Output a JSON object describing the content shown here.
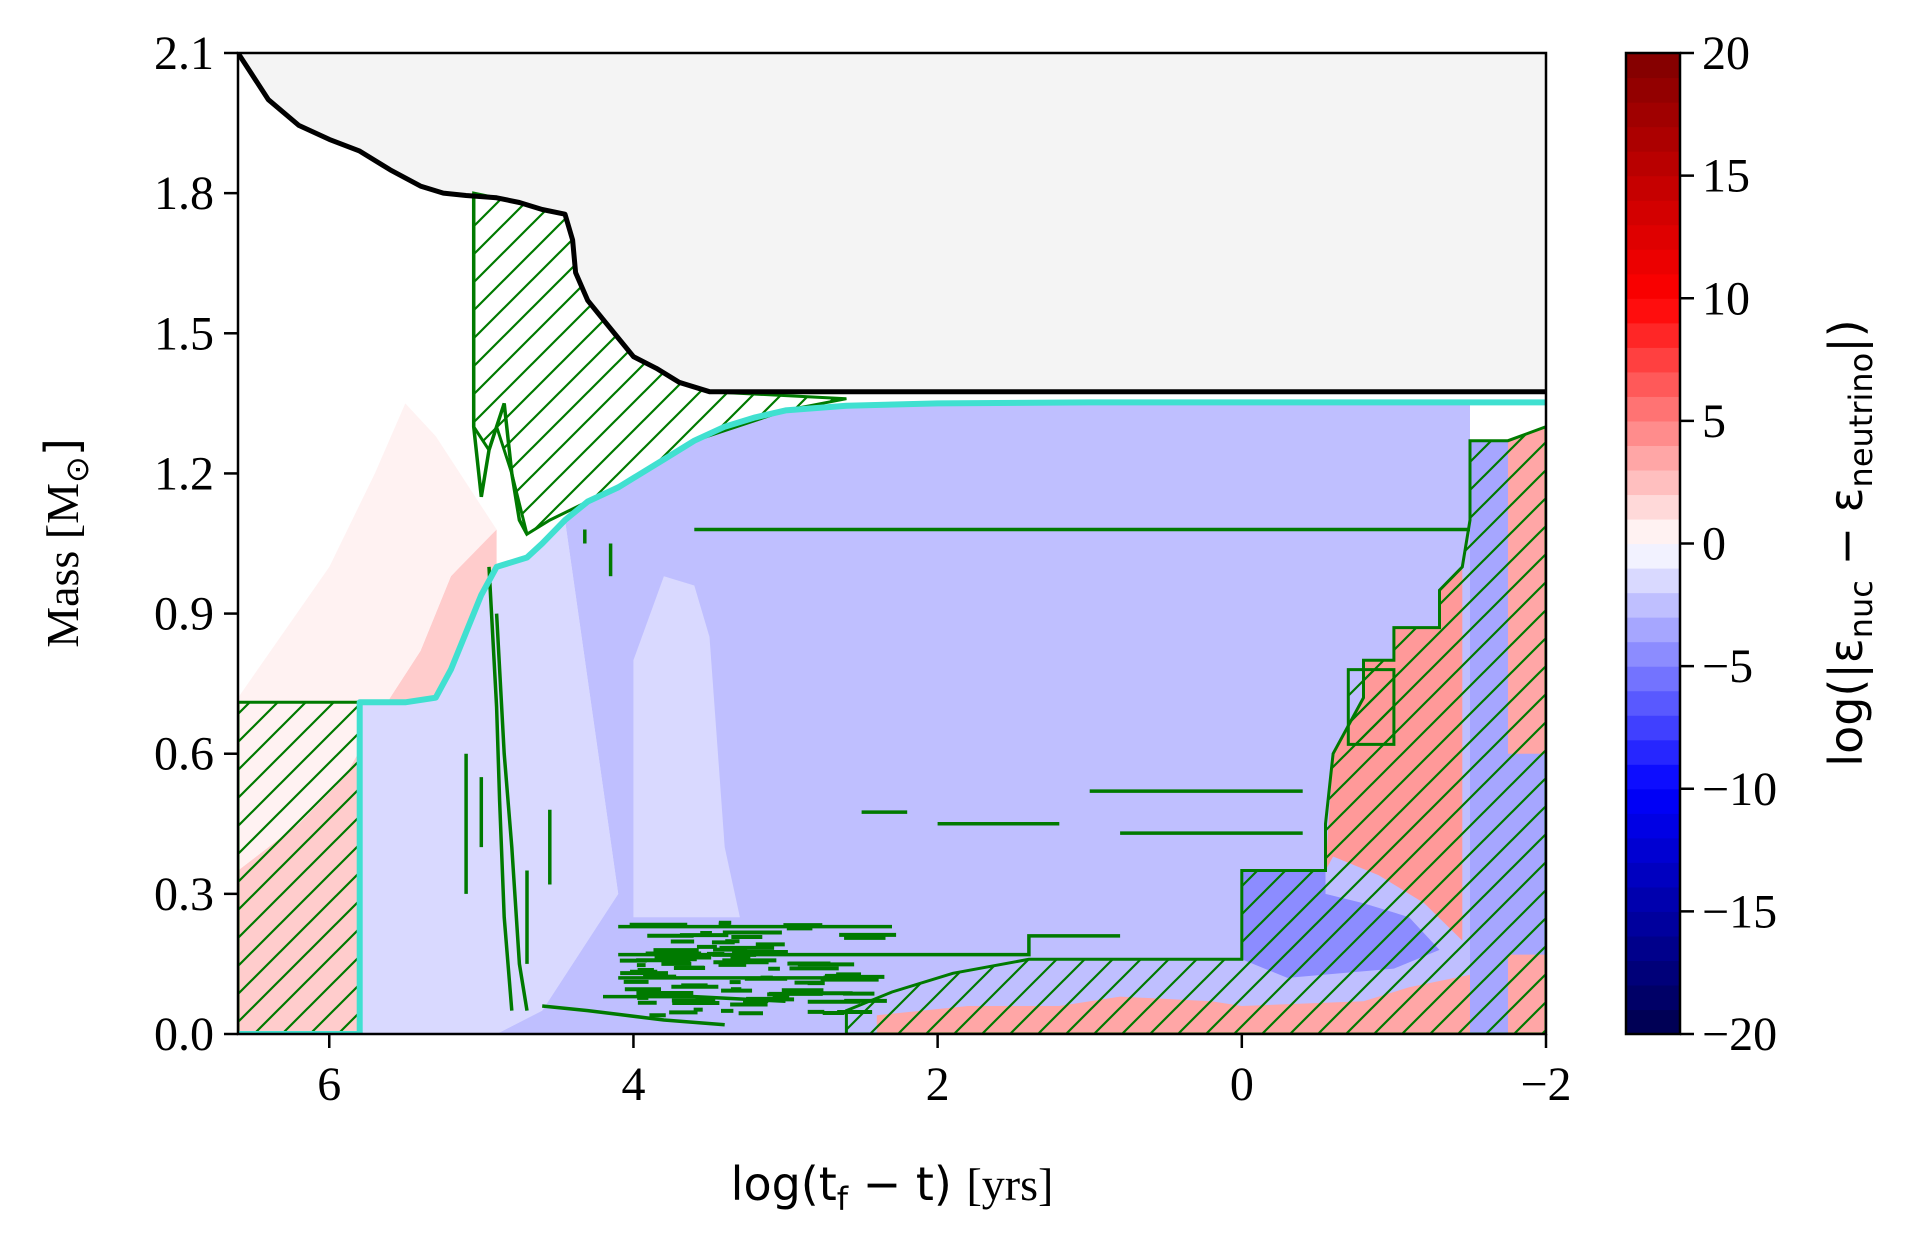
{
  "chart_data": {
    "type": "heatmap",
    "title": "",
    "xlabel": {
      "main": "log(t",
      "sub": "f",
      "rest": " − t) ",
      "unit": "[yrs]"
    },
    "ylabel": {
      "main": "Mass [M",
      "sub": "⊙",
      "rest": "]"
    },
    "colorbar_label": {
      "pre": "log(|ε",
      "sub1": "nuc",
      "mid": " − ε",
      "sub2": "neutrino",
      "post": "|)"
    },
    "xlim": [
      6.6,
      -2
    ],
    "ylim": [
      0,
      2.1
    ],
    "clim": [
      -20,
      20
    ],
    "colormap": "seismic",
    "xticks": [
      {
        "value": 6,
        "label": "6"
      },
      {
        "value": 4,
        "label": "4"
      },
      {
        "value": 2,
        "label": "2"
      },
      {
        "value": 0,
        "label": "0"
      },
      {
        "value": -2,
        "label": "−2"
      }
    ],
    "yticks": [
      {
        "value": 0.0,
        "label": "0.0"
      },
      {
        "value": 0.3,
        "label": "0.3"
      },
      {
        "value": 0.6,
        "label": "0.6"
      },
      {
        "value": 0.9,
        "label": "0.9"
      },
      {
        "value": 1.2,
        "label": "1.2"
      },
      {
        "value": 1.5,
        "label": "1.5"
      },
      {
        "value": 1.8,
        "label": "1.8"
      },
      {
        "value": 2.1,
        "label": "2.1"
      }
    ],
    "cticks": [
      {
        "value": 20,
        "label": "20"
      },
      {
        "value": 15,
        "label": "15"
      },
      {
        "value": 10,
        "label": "10"
      },
      {
        "value": 5,
        "label": "5"
      },
      {
        "value": 0,
        "label": "0"
      },
      {
        "value": -5,
        "label": "−5"
      },
      {
        "value": -10,
        "label": "−10"
      },
      {
        "value": -15,
        "label": "−15"
      },
      {
        "value": -20,
        "label": "−20"
      }
    ],
    "colors": {
      "total_mass_line": "#000000",
      "boundary_line": "#40e0d0",
      "convection_hatch": "#007a00",
      "exterior_fill": "#f4f4f4"
    },
    "series": [
      {
        "kind": "total_mass",
        "points": [
          [
            6.6,
            2.1
          ],
          [
            6.4,
            2.0
          ],
          [
            6.2,
            1.945
          ],
          [
            6.0,
            1.915
          ],
          [
            5.8,
            1.89
          ],
          [
            5.6,
            1.85
          ],
          [
            5.4,
            1.815
          ],
          [
            5.25,
            1.8
          ],
          [
            5.1,
            1.795
          ],
          [
            4.9,
            1.79
          ],
          [
            4.75,
            1.78
          ],
          [
            4.6,
            1.765
          ],
          [
            4.45,
            1.755
          ],
          [
            4.4,
            1.7
          ],
          [
            4.38,
            1.63
          ],
          [
            4.3,
            1.57
          ],
          [
            4.2,
            1.53
          ],
          [
            4.1,
            1.49
          ],
          [
            4.0,
            1.45
          ],
          [
            3.85,
            1.425
          ],
          [
            3.7,
            1.395
          ],
          [
            3.5,
            1.375
          ],
          [
            -2,
            1.375
          ]
        ]
      },
      {
        "kind": "core_boundary",
        "points": [
          [
            6.6,
            0.0
          ],
          [
            5.8,
            0.0
          ],
          [
            5.8,
            0.71
          ],
          [
            5.5,
            0.71
          ],
          [
            5.3,
            0.72
          ],
          [
            5.2,
            0.78
          ],
          [
            5.1,
            0.86
          ],
          [
            5.0,
            0.94
          ],
          [
            4.9,
            1.0
          ],
          [
            4.7,
            1.02
          ],
          [
            4.6,
            1.05
          ],
          [
            4.45,
            1.1
          ],
          [
            4.3,
            1.14
          ],
          [
            4.1,
            1.17
          ],
          [
            4.0,
            1.19
          ],
          [
            3.8,
            1.23
          ],
          [
            3.6,
            1.27
          ],
          [
            3.4,
            1.3
          ],
          [
            3.2,
            1.32
          ],
          [
            3.0,
            1.335
          ],
          [
            2.6,
            1.345
          ],
          [
            2.0,
            1.35
          ],
          [
            1.0,
            1.352
          ],
          [
            -2,
            1.352
          ]
        ]
      }
    ],
    "regions": [
      {
        "kind": "convective",
        "points": [
          [
            6.6,
            0.0
          ],
          [
            6.6,
            0.71
          ],
          [
            5.8,
            0.71
          ],
          [
            5.8,
            0.0
          ]
        ]
      },
      {
        "kind": "convective",
        "points": [
          [
            5.05,
            1.8
          ],
          [
            4.9,
            1.79
          ],
          [
            4.75,
            1.78
          ],
          [
            4.6,
            1.765
          ],
          [
            4.45,
            1.755
          ],
          [
            4.4,
            1.7
          ],
          [
            4.38,
            1.63
          ],
          [
            4.3,
            1.57
          ],
          [
            4.2,
            1.53
          ],
          [
            4.1,
            1.49
          ],
          [
            4.0,
            1.45
          ],
          [
            3.85,
            1.425
          ],
          [
            3.7,
            1.395
          ],
          [
            3.5,
            1.375
          ],
          [
            2.6,
            1.36
          ],
          [
            3.0,
            1.335
          ],
          [
            3.6,
            1.27
          ],
          [
            4.0,
            1.19
          ],
          [
            4.3,
            1.14
          ],
          [
            4.55,
            1.1
          ],
          [
            4.7,
            1.07
          ],
          [
            4.8,
            1.2
          ],
          [
            4.9,
            1.3
          ],
          [
            4.95,
            1.25
          ],
          [
            5.05,
            1.3
          ],
          [
            5.05,
            1.8
          ]
        ]
      },
      {
        "kind": "convective",
        "points": [
          [
            2.6,
            0.0
          ],
          [
            2.6,
            0.05
          ],
          [
            2.3,
            0.09
          ],
          [
            1.9,
            0.13
          ],
          [
            1.4,
            0.16
          ],
          [
            0.0,
            0.16
          ],
          [
            0.0,
            0.35
          ],
          [
            -0.55,
            0.35
          ],
          [
            -0.55,
            0.45
          ],
          [
            -0.6,
            0.6
          ],
          [
            -0.8,
            0.72
          ],
          [
            -0.8,
            0.8
          ],
          [
            -1.0,
            0.8
          ],
          [
            -1.0,
            0.87
          ],
          [
            -1.3,
            0.87
          ],
          [
            -1.3,
            0.95
          ],
          [
            -1.45,
            1.0
          ],
          [
            -1.5,
            1.1
          ],
          [
            -1.5,
            1.27
          ],
          [
            -1.75,
            1.27
          ],
          [
            -2,
            1.3
          ],
          [
            -2,
            0.0
          ]
        ]
      },
      {
        "kind": "convective",
        "points": [
          [
            -0.7,
            0.62
          ],
          [
            -1.0,
            0.62
          ],
          [
            -1.0,
            0.78
          ],
          [
            -0.7,
            0.78
          ]
        ]
      }
    ],
    "heat_regions": [
      {
        "value": 2,
        "points": [
          [
            6.6,
            0.0
          ],
          [
            6.6,
            0.35
          ],
          [
            6.2,
            0.45
          ],
          [
            5.9,
            0.55
          ],
          [
            5.6,
            0.72
          ],
          [
            5.4,
            0.82
          ],
          [
            5.2,
            0.98
          ],
          [
            5.0,
            1.05
          ],
          [
            4.9,
            1.08
          ],
          [
            4.9,
            1.0
          ],
          [
            5.1,
            0.86
          ],
          [
            5.3,
            0.72
          ],
          [
            5.5,
            0.5
          ],
          [
            5.6,
            0.25
          ],
          [
            5.7,
            0.05
          ],
          [
            5.8,
            0.0
          ]
        ]
      },
      {
        "value": 0.5,
        "points": [
          [
            6.6,
            0.35
          ],
          [
            6.6,
            0.72
          ],
          [
            6.0,
            1.0
          ],
          [
            5.7,
            1.2
          ],
          [
            5.5,
            1.35
          ],
          [
            5.3,
            1.28
          ],
          [
            5.1,
            1.18
          ],
          [
            4.9,
            1.08
          ],
          [
            5.2,
            0.98
          ],
          [
            5.4,
            0.82
          ],
          [
            5.6,
            0.72
          ],
          [
            5.9,
            0.55
          ],
          [
            6.2,
            0.45
          ]
        ]
      },
      {
        "value": -1.5,
        "points": [
          [
            5.8,
            0.0
          ],
          [
            5.8,
            0.71
          ],
          [
            5.5,
            0.71
          ],
          [
            5.3,
            0.72
          ],
          [
            5.1,
            0.86
          ],
          [
            4.9,
            1.0
          ],
          [
            4.7,
            1.02
          ],
          [
            4.6,
            1.05
          ],
          [
            4.45,
            1.1
          ],
          [
            4.1,
            0.3
          ],
          [
            4.6,
            0.05
          ],
          [
            4.9,
            0.0
          ]
        ]
      },
      {
        "value": -2.5,
        "points": [
          [
            4.9,
            0.0
          ],
          [
            4.6,
            0.05
          ],
          [
            4.1,
            0.3
          ],
          [
            4.45,
            1.1
          ],
          [
            4.3,
            1.14
          ],
          [
            4.1,
            1.17
          ],
          [
            4.0,
            1.19
          ],
          [
            3.8,
            1.23
          ],
          [
            3.6,
            1.27
          ],
          [
            3.4,
            1.3
          ],
          [
            3.2,
            1.32
          ],
          [
            3.0,
            1.335
          ],
          [
            2.6,
            1.345
          ],
          [
            2.0,
            1.35
          ],
          [
            -1.5,
            1.352
          ],
          [
            -1.5,
            0.0
          ]
        ]
      },
      {
        "value": -1.5,
        "points": [
          [
            4.0,
            0.25
          ],
          [
            4.0,
            0.8
          ],
          [
            3.8,
            0.98
          ],
          [
            3.6,
            0.96
          ],
          [
            3.5,
            0.85
          ],
          [
            3.4,
            0.4
          ],
          [
            3.3,
            0.25
          ]
        ]
      },
      {
        "value": -4.5,
        "points": [
          [
            0.0,
            0.16
          ],
          [
            0.0,
            0.35
          ],
          [
            -0.55,
            0.35
          ],
          [
            -0.55,
            0.3
          ],
          [
            -0.8,
            0.28
          ],
          [
            -1.1,
            0.25
          ],
          [
            -1.3,
            0.18
          ],
          [
            -1.0,
            0.14
          ],
          [
            -0.3,
            0.12
          ]
        ]
      },
      {
        "value": 3.5,
        "points": [
          [
            2.4,
            0.0
          ],
          [
            2.4,
            0.04
          ],
          [
            1.8,
            0.06
          ],
          [
            1.2,
            0.06
          ],
          [
            0.8,
            0.08
          ],
          [
            0.2,
            0.07
          ],
          [
            0.0,
            0.06
          ],
          [
            -0.8,
            0.07
          ],
          [
            -1.1,
            0.1
          ],
          [
            -1.4,
            0.12
          ],
          [
            -1.7,
            0.14
          ],
          [
            -2,
            0.18
          ],
          [
            -2,
            0.0
          ]
        ]
      },
      {
        "value": 4,
        "points": [
          [
            -0.55,
            0.35
          ],
          [
            -0.6,
            0.6
          ],
          [
            -0.8,
            0.72
          ],
          [
            -0.8,
            0.8
          ],
          [
            -1.0,
            0.8
          ],
          [
            -1.0,
            0.87
          ],
          [
            -1.3,
            0.87
          ],
          [
            -1.3,
            0.95
          ],
          [
            -1.45,
            1.0
          ],
          [
            -1.45,
            0.2
          ],
          [
            -1.2,
            0.28
          ],
          [
            -0.9,
            0.34
          ],
          [
            -0.6,
            0.38
          ]
        ]
      },
      {
        "value": -3.5,
        "points": [
          [
            -1.5,
            0.0
          ],
          [
            -1.5,
            1.27
          ],
          [
            -1.75,
            1.27
          ],
          [
            -1.8,
            0.0
          ]
        ]
      },
      {
        "value": 3.5,
        "points": [
          [
            -1.75,
            0.0
          ],
          [
            -1.75,
            1.27
          ],
          [
            -2,
            1.3
          ],
          [
            -2,
            0.0
          ]
        ]
      },
      {
        "value": -3.5,
        "points": [
          [
            -1.75,
            0.17
          ],
          [
            -1.75,
            0.6
          ],
          [
            -2,
            0.6
          ],
          [
            -2,
            0.17
          ]
        ]
      }
    ],
    "convective_lines": [
      [
        [
          5.05,
          1.8
        ],
        [
          5.05,
          1.3
        ],
        [
          5.0,
          1.15
        ],
        [
          4.95,
          1.25
        ],
        [
          4.9,
          1.3
        ],
        [
          4.85,
          1.35
        ],
        [
          4.8,
          1.2
        ],
        [
          4.75,
          1.1
        ],
        [
          4.7,
          1.07
        ]
      ],
      [
        [
          4.95,
          1.0
        ],
        [
          4.9,
          0.7
        ],
        [
          4.88,
          0.5
        ],
        [
          4.85,
          0.25
        ],
        [
          4.8,
          0.05
        ]
      ],
      [
        [
          4.9,
          0.9
        ],
        [
          4.85,
          0.6
        ],
        [
          4.8,
          0.4
        ],
        [
          4.75,
          0.15
        ],
        [
          4.7,
          0.05
        ]
      ],
      [
        [
          3.6,
          1.08
        ],
        [
          1.2,
          1.08
        ],
        [
          0.8,
          1.08
        ],
        [
          -1.5,
          1.08
        ]
      ],
      [
        [
          2.0,
          0.45
        ],
        [
          1.2,
          0.45
        ]
      ],
      [
        [
          2.5,
          0.475
        ],
        [
          2.2,
          0.475
        ]
      ],
      [
        [
          1.0,
          0.52
        ],
        [
          0.5,
          0.52
        ],
        [
          -0.4,
          0.52
        ]
      ],
      [
        [
          0.8,
          0.43
        ],
        [
          -0.4,
          0.43
        ]
      ],
      [
        [
          4.1,
          0.23
        ],
        [
          3.5,
          0.23
        ],
        [
          2.3,
          0.23
        ]
      ],
      [
        [
          4.1,
          0.17
        ],
        [
          1.4,
          0.17
        ],
        [
          1.4,
          0.21
        ],
        [
          0.8,
          0.21
        ]
      ],
      [
        [
          4.1,
          0.12
        ],
        [
          3.0,
          0.12
        ],
        [
          2.5,
          0.12
        ]
      ],
      [
        [
          4.2,
          0.08
        ],
        [
          3.6,
          0.08
        ],
        [
          3.0,
          0.07
        ]
      ],
      [
        [
          4.6,
          0.06
        ],
        [
          4.3,
          0.05
        ],
        [
          3.8,
          0.03
        ],
        [
          3.4,
          0.02
        ]
      ],
      [
        [
          5.1,
          0.6
        ],
        [
          5.1,
          0.3
        ]
      ],
      [
        [
          5.0,
          0.55
        ],
        [
          5.0,
          0.4
        ]
      ],
      [
        [
          4.7,
          0.35
        ],
        [
          4.7,
          0.15
        ]
      ],
      [
        [
          4.55,
          0.48
        ],
        [
          4.55,
          0.32
        ]
      ],
      [
        [
          4.15,
          1.05
        ],
        [
          4.15,
          0.98
        ]
      ],
      [
        [
          4.32,
          1.08
        ],
        [
          4.32,
          1.05
        ]
      ]
    ],
    "noise_segments": {
      "x_range": [
        4.1,
        2.6
      ],
      "y_range": [
        0.04,
        0.24
      ],
      "count": 90
    }
  }
}
